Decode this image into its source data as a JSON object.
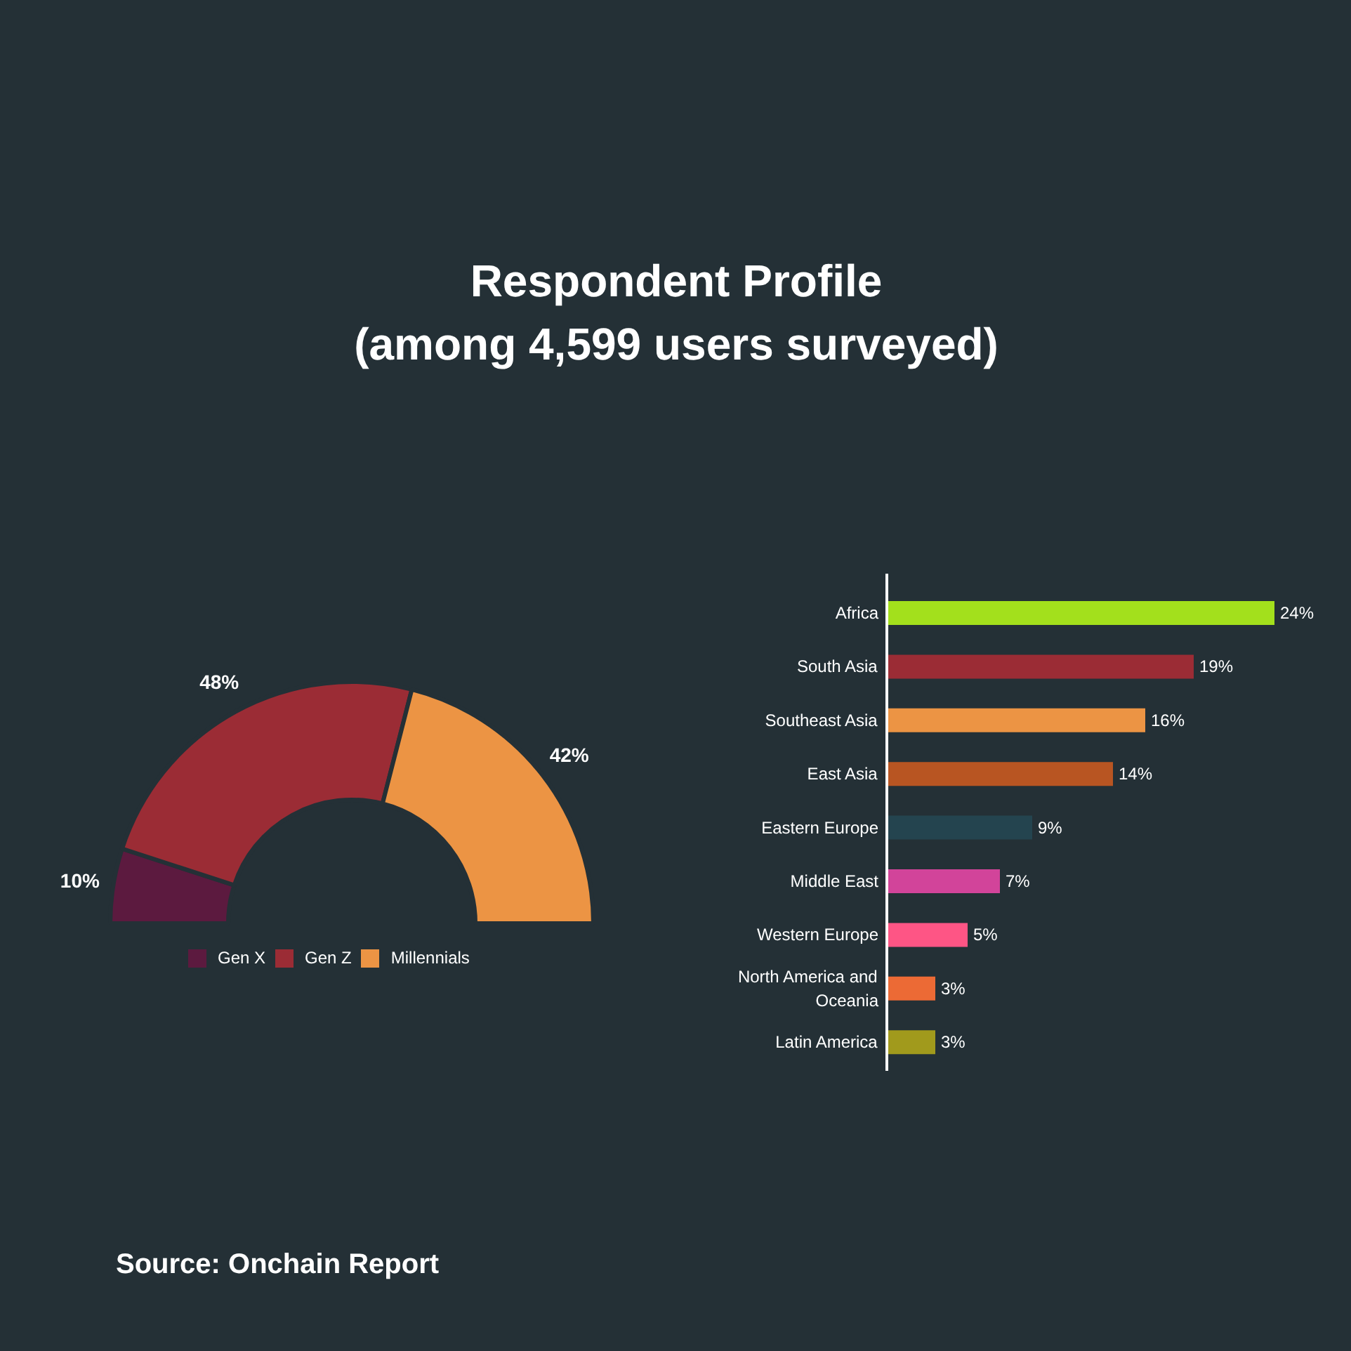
{
  "chart_data": [
    {
      "type": "donut",
      "title": "Respondent Profile\n(among 4,599 users surveyed)",
      "categories": [
        "Gen X",
        "Gen Z",
        "Millennials"
      ],
      "values": [
        10,
        48,
        42
      ],
      "colors": [
        "#5c1a3f",
        "#9b2c35",
        "#ec9444"
      ],
      "value_labels": [
        "10%",
        "48%",
        "42%"
      ],
      "legend": "bottom",
      "annotations": [
        "Source: Onchain Report"
      ]
    },
    {
      "type": "bar",
      "orientation": "horizontal",
      "categories": [
        "Africa",
        "South Asia",
        "Southeast Asia",
        "East Asia",
        "Eastern Europe",
        "Middle East",
        "Western Europe",
        "North America and\nOceania",
        "Latin America"
      ],
      "values": [
        24,
        19,
        16,
        14,
        9,
        7,
        5,
        3,
        3
      ],
      "colors": [
        "#a3e01c",
        "#9b2c35",
        "#ec9444",
        "#b85522",
        "#24444f",
        "#d2449a",
        "#fe5585",
        "#ec6a35",
        "#a19a1c"
      ],
      "value_labels": [
        "24%",
        "19%",
        "16%",
        "14%",
        "9%",
        "7%",
        "5%",
        "3%",
        "3%"
      ]
    }
  ]
}
